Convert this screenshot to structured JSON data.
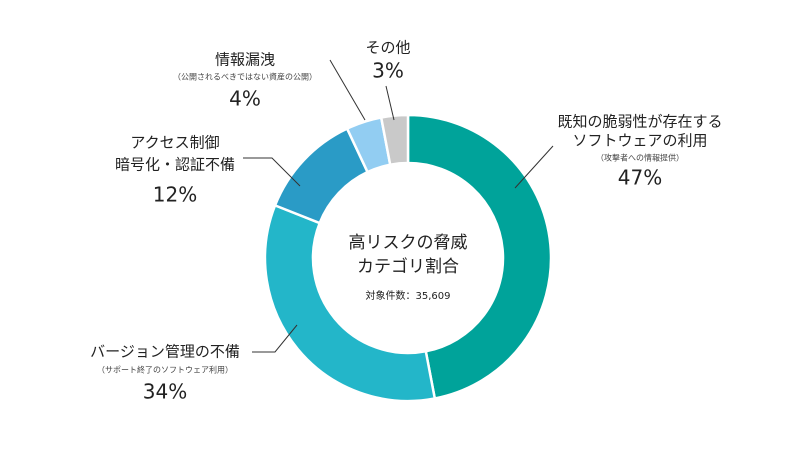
{
  "chart_data": {
    "type": "pie",
    "center_title": [
      "高リスクの脅威",
      "カテゴリ割合"
    ],
    "center_note": "対象件数：35,609",
    "categories": [
      {
        "label": [
          "既知の脆弱性が存在する",
          "ソフトウェアの利用"
        ],
        "note": "（攻撃者への情報提供）"
      },
      {
        "label": [
          "バージョン管理の不備"
        ],
        "note": "（サポート終了のソフトウェア利用）"
      },
      {
        "label": [
          "アクセス制御",
          "暗号化・認証不備"
        ]
      },
      {
        "label": [
          "情報漏洩"
        ],
        "note": "（公開されるべきではない資産の公開）"
      },
      {
        "label": [
          "その他"
        ]
      }
    ],
    "values": [
      47,
      34,
      12,
      4,
      3
    ],
    "value_labels": [
      "47%",
      "34%",
      "12%",
      "4%",
      "3%"
    ],
    "colors": [
      "#00a39a",
      "#23b6c9",
      "#2a9bc6",
      "#92cdf2",
      "#c9c9c9"
    ]
  }
}
